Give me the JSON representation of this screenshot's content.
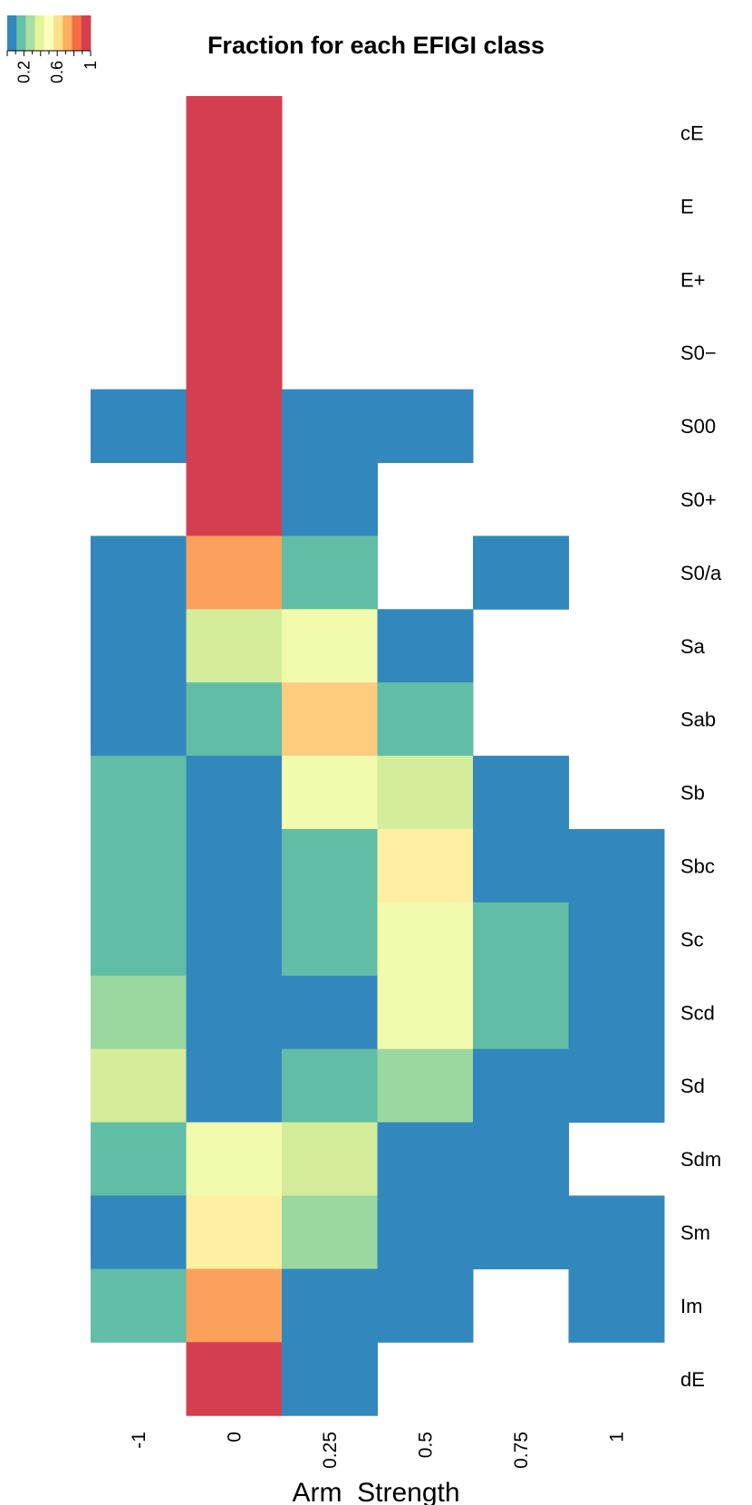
{
  "chart_data": {
    "type": "heatmap",
    "title": "Fraction for each EFIGI class",
    "xlabel": "Arm_Strength",
    "ylabel": "",
    "columns": [
      "-1",
      "0",
      "0.25",
      "0.5",
      "0.75",
      "1"
    ],
    "rows": [
      "cE",
      "E",
      "E+",
      "S0−",
      "S00",
      "S0+",
      "S0/a",
      "Sa",
      "Sab",
      "Sb",
      "Sbc",
      "Sc",
      "Scd",
      "Sd",
      "Sdm",
      "Sm",
      "Im",
      "dE"
    ],
    "values": [
      [
        null,
        1.0,
        null,
        null,
        null,
        null
      ],
      [
        null,
        1.0,
        null,
        null,
        null,
        null
      ],
      [
        null,
        1.0,
        null,
        null,
        null,
        null
      ],
      [
        null,
        1.0,
        null,
        null,
        null,
        null
      ],
      [
        0.05,
        1.0,
        0.05,
        0.05,
        null,
        null
      ],
      [
        null,
        1.0,
        0.05,
        null,
        null,
        null
      ],
      [
        0.05,
        0.8,
        0.25,
        null,
        0.05,
        null
      ],
      [
        0.05,
        0.4,
        0.5,
        0.05,
        null,
        null
      ],
      [
        0.05,
        0.25,
        0.7,
        0.25,
        null,
        null
      ],
      [
        0.25,
        0.05,
        0.5,
        0.4,
        0.05,
        null
      ],
      [
        0.25,
        0.05,
        0.25,
        0.55,
        0.05,
        0.05
      ],
      [
        0.25,
        0.05,
        0.25,
        0.5,
        0.25,
        0.05
      ],
      [
        0.35,
        0.05,
        0.05,
        0.5,
        0.25,
        0.05
      ],
      [
        0.4,
        0.05,
        0.25,
        0.35,
        0.05,
        0.05
      ],
      [
        0.25,
        0.5,
        0.4,
        0.05,
        0.05,
        null
      ],
      [
        0.05,
        0.55,
        0.35,
        0.05,
        0.05,
        0.05
      ],
      [
        0.25,
        0.8,
        0.05,
        0.05,
        null,
        0.05
      ],
      [
        null,
        1.0,
        0.05,
        null,
        null,
        null
      ]
    ],
    "legend": {
      "placement": "top-left",
      "ticks": [
        "0.2",
        "0.6",
        "1"
      ],
      "tick_values": [
        0.2,
        0.6,
        1.0
      ],
      "range": [
        0,
        1
      ]
    },
    "colors": [
      "#3288bd",
      "#66c2a5",
      "#abdda4",
      "#e6f598",
      "#ffffbf",
      "#fee08b",
      "#fdae61",
      "#f46d43",
      "#d53e4f"
    ],
    "cell_colors": [
      [
        null,
        "#d53e4f",
        null,
        null,
        null,
        null
      ],
      [
        null,
        "#d53e4f",
        null,
        null,
        null,
        null
      ],
      [
        null,
        "#d53e4f",
        null,
        null,
        null,
        null
      ],
      [
        null,
        "#d53e4f",
        null,
        null,
        null,
        null
      ],
      [
        "#3288bd",
        "#d53e4f",
        "#3288bd",
        "#3288bd",
        null,
        null
      ],
      [
        null,
        "#d53e4f",
        "#3288bd",
        null,
        null,
        null
      ],
      [
        "#3288bd",
        "#fca15c",
        "#61bda6",
        null,
        "#3288bd",
        null
      ],
      [
        "#3288bd",
        "#d3ed9b",
        "#f2faad",
        "#3288bd",
        null,
        null
      ],
      [
        "#3288bd",
        "#61bda6",
        "#fdcc7c",
        "#61bda6",
        null,
        null
      ],
      [
        "#61bda6",
        "#3288bd",
        "#f2faad",
        "#d3ed9b",
        "#3288bd",
        null
      ],
      [
        "#61bda6",
        "#3288bd",
        "#61bda6",
        "#feefa3",
        "#3288bd",
        "#3288bd"
      ],
      [
        "#61bda6",
        "#3288bd",
        "#61bda6",
        "#f2faad",
        "#61bda6",
        "#3288bd"
      ],
      [
        "#9ad8a0",
        "#3288bd",
        "#3288bd",
        "#f2faad",
        "#61bda6",
        "#3288bd"
      ],
      [
        "#d3ed9b",
        "#3288bd",
        "#61bda6",
        "#9ad8a0",
        "#3288bd",
        "#3288bd"
      ],
      [
        "#61bda6",
        "#f2faad",
        "#d3ed9b",
        "#3288bd",
        "#3288bd",
        null
      ],
      [
        "#3288bd",
        "#feefa3",
        "#9ad8a0",
        "#3288bd",
        "#3288bd",
        "#3288bd"
      ],
      [
        "#61bda6",
        "#fca15c",
        "#3288bd",
        "#3288bd",
        null,
        "#3288bd"
      ],
      [
        null,
        "#d53e4f",
        "#3288bd",
        null,
        null,
        null
      ]
    ]
  }
}
